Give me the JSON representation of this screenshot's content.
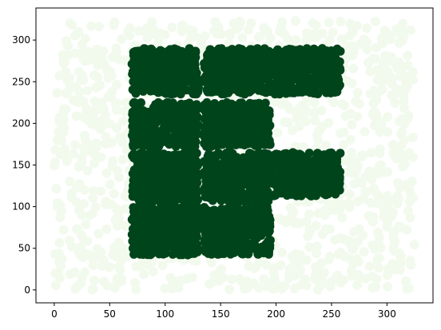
{
  "chart_data": {
    "type": "scatter",
    "title": "",
    "xlabel": "",
    "ylabel": "",
    "xlim": [
      -16.5,
      341.5
    ],
    "ylim": [
      -15.5,
      338.5
    ],
    "xticks": [
      0,
      50,
      100,
      150,
      200,
      250,
      300
    ],
    "yticks": [
      0,
      50,
      100,
      150,
      200,
      250,
      300
    ],
    "grid": false,
    "legend": "none",
    "colors": {
      "background_points": "#f2faee",
      "cluster_points": "#00441b"
    },
    "background_region": {
      "x": [
        0,
        325
      ],
      "y": [
        0,
        323
      ]
    },
    "clusters": [
      {
        "x": [
          70,
          130
        ],
        "y": [
          235,
          290
        ]
      },
      {
        "x": [
          135,
          195
        ],
        "y": [
          235,
          290
        ]
      },
      {
        "x": [
          197,
          258
        ],
        "y": [
          235,
          290
        ]
      },
      {
        "x": [
          70,
          130
        ],
        "y": [
          172,
          225
        ]
      },
      {
        "x": [
          135,
          195
        ],
        "y": [
          172,
          225
        ]
      },
      {
        "x": [
          70,
          130
        ],
        "y": [
          105,
          165
        ]
      },
      {
        "x": [
          135,
          195
        ],
        "y": [
          105,
          165
        ]
      },
      {
        "x": [
          197,
          258
        ],
        "y": [
          112,
          165
        ]
      },
      {
        "x": [
          70,
          130
        ],
        "y": [
          42,
          100
        ]
      },
      {
        "x": [
          135,
          195
        ],
        "y": [
          42,
          100
        ]
      }
    ]
  }
}
